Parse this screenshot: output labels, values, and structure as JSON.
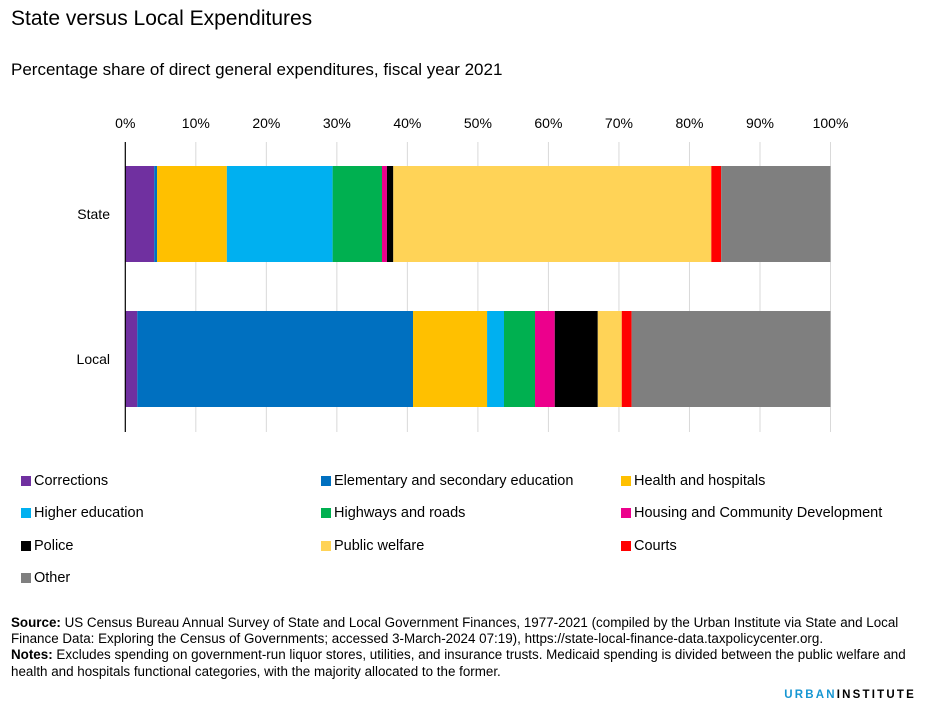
{
  "header": {
    "title": "State versus Local Expenditures",
    "subtitle": "Percentage share of direct general expenditures, fiscal year 2021"
  },
  "chart_data": {
    "type": "bar",
    "orientation": "horizontal",
    "stacked": true,
    "title": "State versus Local Expenditures",
    "subtitle": "Percentage share of direct general expenditures, fiscal year 2021",
    "xlabel": "",
    "ylabel": "",
    "xlim": [
      0,
      100
    ],
    "x_ticks": [
      0,
      10,
      20,
      30,
      40,
      50,
      60,
      70,
      80,
      90,
      100
    ],
    "x_tick_labels": [
      "0%",
      "10%",
      "20%",
      "30%",
      "40%",
      "50%",
      "60%",
      "70%",
      "80%",
      "90%",
      "100%"
    ],
    "x_axis_position": "top",
    "grid": true,
    "legend_position": "bottom",
    "categories": [
      "State",
      "Local"
    ],
    "series": [
      {
        "name": "Corrections",
        "color": "#7030a0",
        "values": [
          4.1,
          1.7
        ]
      },
      {
        "name": "Elementary and secondary education",
        "color": "#0070c0",
        "values": [
          0.4,
          39.1
        ]
      },
      {
        "name": "Health and hospitals",
        "color": "#ffc000",
        "values": [
          9.9,
          10.5
        ]
      },
      {
        "name": "Higher education",
        "color": "#00b0f0",
        "values": [
          15.0,
          2.4
        ]
      },
      {
        "name": "Highways and roads",
        "color": "#00b050",
        "values": [
          7.0,
          4.4
        ]
      },
      {
        "name": "Housing and Community Development",
        "color": "#ec008c",
        "values": [
          0.7,
          2.8
        ]
      },
      {
        "name": "Police",
        "color": "#000000",
        "values": [
          0.9,
          6.1
        ]
      },
      {
        "name": "Public welfare",
        "color": "#ffd357",
        "values": [
          45.1,
          3.4
        ]
      },
      {
        "name": "Courts",
        "color": "#ff0000",
        "values": [
          1.4,
          1.4
        ]
      },
      {
        "name": "Other",
        "color": "#7f7f7f",
        "values": [
          15.5,
          28.2
        ]
      }
    ]
  },
  "footer": {
    "source_label": "Source:",
    "source_text": " US Census Bureau Annual Survey of State and Local Government Finances, 1977-2021 (compiled by the Urban Institute via State and Local Finance Data: Exploring the Census of Governments; accessed 3-March-2024 07:19), https://state-local-finance-data.taxpolicycenter.org.",
    "notes_label": "Notes:",
    "notes_text": " Excludes spending on government-run liquor stores, utilities, and insurance trusts. Medicaid spending is divided between the public welfare and health and hospitals functional categories, with the majority allocated to the former."
  },
  "logo": {
    "urban": "URBAN",
    "institute": "INSTITUTE",
    "urban_color": "#1696d2"
  }
}
